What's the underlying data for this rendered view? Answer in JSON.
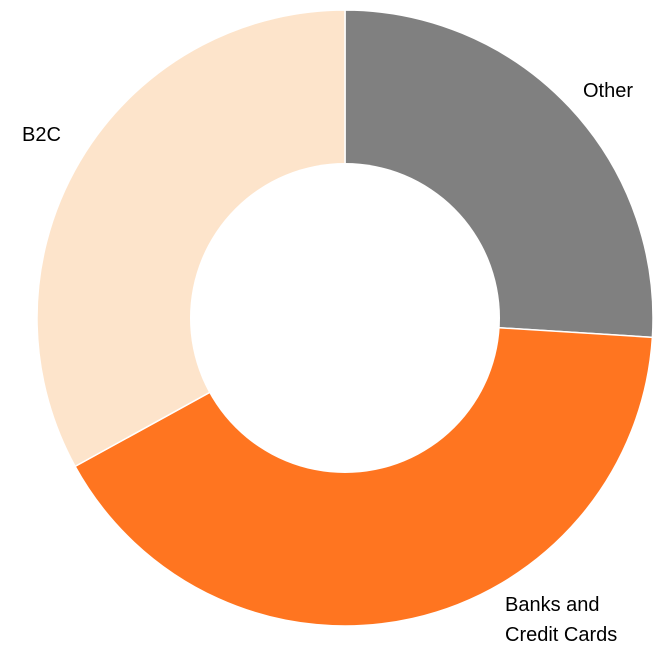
{
  "chart_data": {
    "type": "pie",
    "donut": true,
    "start": "12 o'clock",
    "direction": "clockwise",
    "legend": "none",
    "slices": [
      {
        "label": "Other",
        "value": 26,
        "color": "#808080"
      },
      {
        "label": "Banks and Credit Cards",
        "label_lines": [
          "Banks and",
          "Credit Cards"
        ],
        "value": 41,
        "color": "#ff7520"
      },
      {
        "label": "B2C",
        "value": 33,
        "color": "#fde4cb"
      }
    ]
  }
}
